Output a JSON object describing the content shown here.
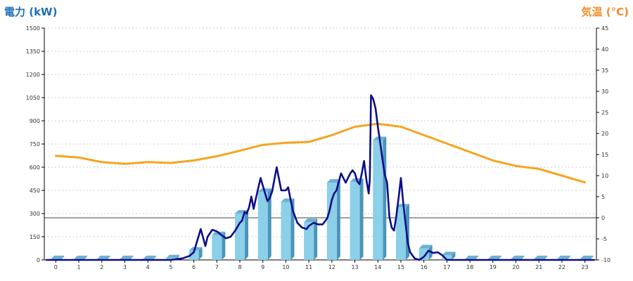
{
  "chart_data": {
    "type": "bar+line",
    "title": "",
    "left_axis_title": "電力 (kW)",
    "right_axis_title": "気温 (°C)",
    "left_axis_color": "#1f6fb4",
    "right_axis_color": "#f28c28",
    "categories": [
      "0",
      "1",
      "2",
      "3",
      "4",
      "5",
      "6",
      "7",
      "8",
      "9",
      "10",
      "11",
      "12",
      "13",
      "14",
      "15",
      "16",
      "17",
      "18",
      "19",
      "20",
      "21",
      "22",
      "23"
    ],
    "left_ylim": [
      0,
      1500
    ],
    "left_ticks": [
      "0",
      "150",
      "300",
      "450",
      "600",
      "750",
      "900",
      "1050",
      "1200",
      "1350",
      "1500"
    ],
    "right_ylim": [
      -10,
      45
    ],
    "right_ticks": [
      "-10",
      "-5",
      "0",
      "5",
      "10",
      "15",
      "20",
      "25",
      "30",
      "35",
      "40",
      "45"
    ],
    "grid": true,
    "series": [
      {
        "kind": "bar",
        "axis": "left",
        "color": "#8ccfe8",
        "values": [
          5,
          5,
          5,
          5,
          5,
          10,
          60,
          160,
          300,
          440,
          375,
          245,
          500,
          505,
          775,
          340,
          75,
          30,
          5,
          5,
          5,
          5,
          5,
          5
        ]
      },
      {
        "kind": "line",
        "axis": "left",
        "color": "#0d0d8a",
        "x": [
          -0.4,
          0,
          1,
          2,
          3,
          4,
          5,
          5.5,
          5.8,
          6,
          6.2,
          6.3,
          6.5,
          6.6,
          6.8,
          7,
          7.2,
          7.4,
          7.6,
          7.8,
          8,
          8.1,
          8.2,
          8.3,
          8.4,
          8.5,
          8.6,
          8.7,
          8.9,
          9,
          9.1,
          9.2,
          9.3,
          9.4,
          9.6,
          9.8,
          10,
          10.1,
          10.3,
          10.5,
          10.7,
          10.9,
          11,
          11.2,
          11.4,
          11.6,
          11.8,
          11.9,
          12,
          12.1,
          12.2,
          12.4,
          12.6,
          12.8,
          12.9,
          13,
          13.1,
          13.2,
          13.3,
          13.4,
          13.5,
          13.6,
          13.65,
          13.7,
          13.8,
          13.9,
          14,
          14.1,
          14.2,
          14.3,
          14.4,
          14.5,
          14.6,
          14.7,
          14.8,
          14.9,
          15,
          15.1,
          15.2,
          15.3,
          15.4,
          15.5,
          15.6,
          15.8,
          16,
          16.2,
          16.4,
          16.6,
          16.8,
          17,
          17.5,
          18,
          19,
          20,
          21,
          22,
          23,
          23.4
        ],
        "y": [
          0,
          0,
          0,
          0,
          0,
          0,
          0,
          10,
          25,
          50,
          150,
          200,
          90,
          150,
          195,
          185,
          160,
          140,
          150,
          190,
          240,
          255,
          310,
          300,
          340,
          410,
          330,
          400,
          530,
          480,
          430,
          380,
          400,
          440,
          600,
          450,
          450,
          470,
          320,
          240,
          210,
          200,
          220,
          240,
          230,
          230,
          270,
          320,
          390,
          430,
          450,
          560,
          500,
          560,
          580,
          560,
          510,
          490,
          560,
          640,
          520,
          430,
          520,
          1065,
          1040,
          980,
          860,
          760,
          650,
          550,
          500,
          280,
          210,
          190,
          280,
          400,
          530,
          370,
          240,
          110,
          50,
          30,
          10,
          0,
          20,
          60,
          45,
          50,
          30,
          0,
          0,
          0,
          0,
          0,
          0,
          0,
          0,
          0
        ]
      },
      {
        "kind": "line",
        "axis": "right",
        "color": "#f5a41f",
        "values": [
          14.7,
          14.3,
          13.2,
          12.8,
          13.2,
          13.0,
          13.6,
          14.6,
          15.9,
          17.3,
          17.8,
          18.0,
          19.6,
          21.6,
          22.3,
          21.6,
          19.6,
          17.6,
          15.6,
          13.6,
          12.3,
          11.6,
          10.0,
          8.4
        ]
      }
    ]
  }
}
